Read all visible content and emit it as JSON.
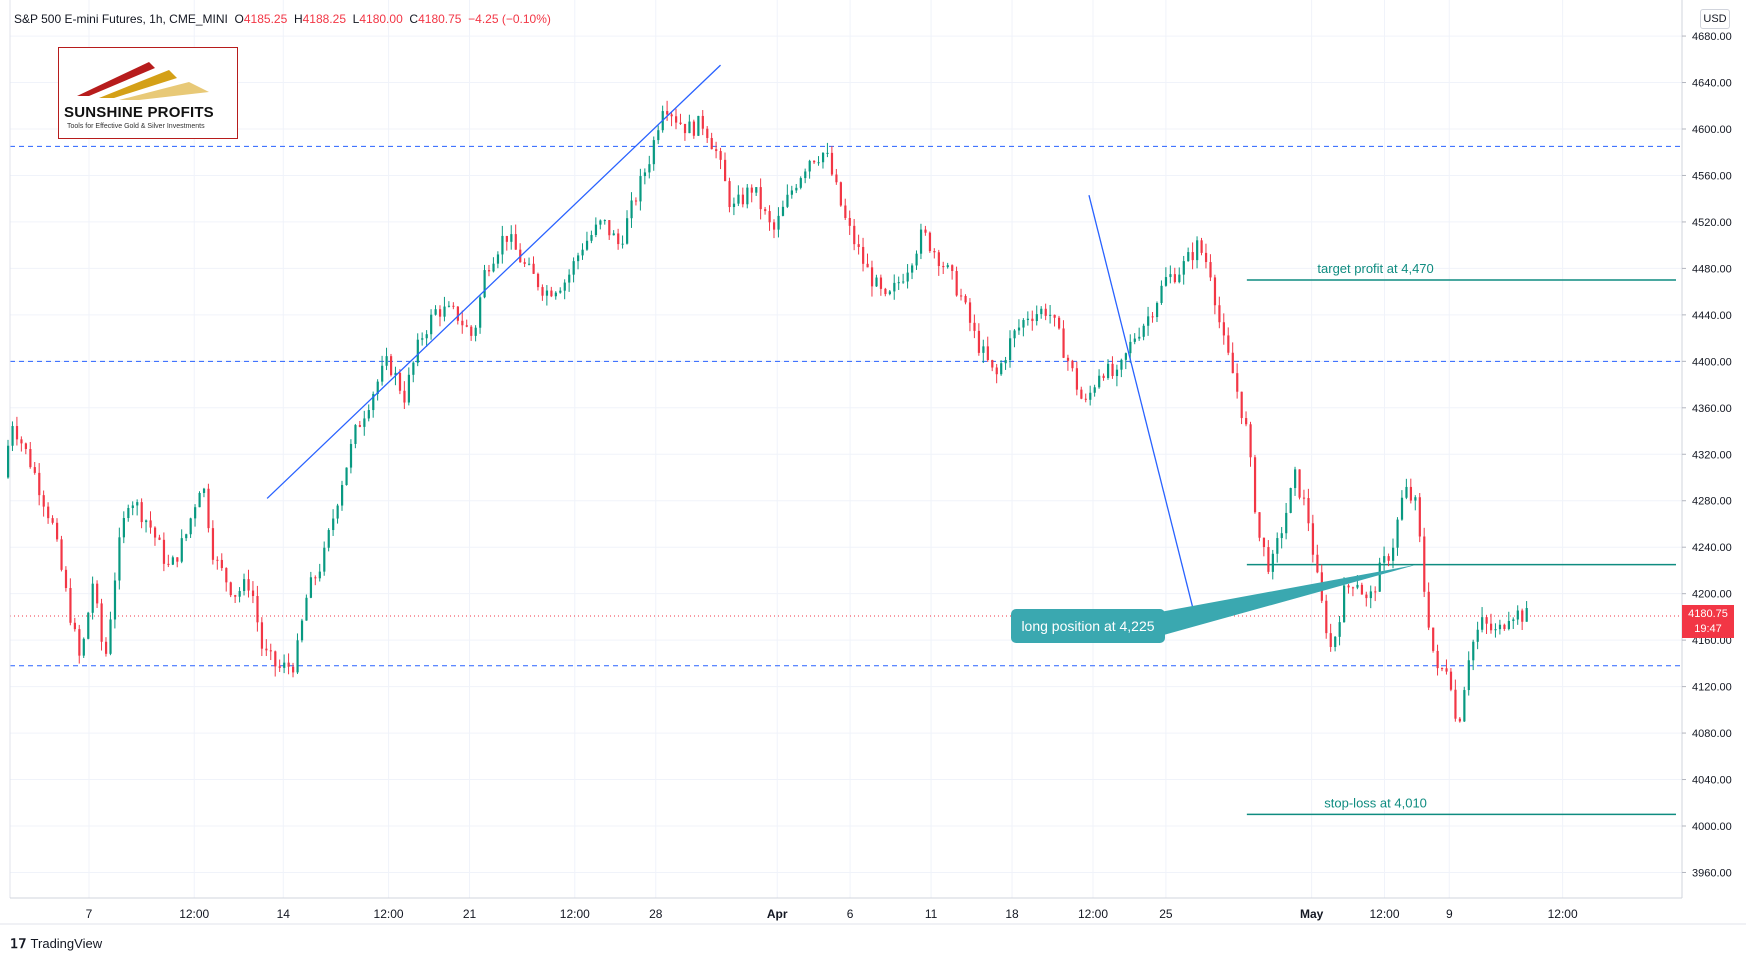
{
  "header": {
    "symbol": "S&P 500 E-mini Futures, 1h, CME_MINI",
    "open_label": "O",
    "open": "4185.25",
    "high_label": "H",
    "high": "4188.25",
    "low_label": "L",
    "low": "4180.00",
    "close_label": "C",
    "close": "4180.75",
    "change": "−4.25 (−0.10%)"
  },
  "currency": "USD",
  "logo": {
    "title": "SUNSHINE PROFITS",
    "subtitle": "Tools for Effective Gold & Silver Investments"
  },
  "price_badge": {
    "price": "4180.75",
    "countdown": "19:47"
  },
  "footer": {
    "brand": "TradingView"
  },
  "colors": {
    "up": "#089981",
    "down": "#f23645",
    "trendline": "#2962ff",
    "level_line": "#2962ff",
    "target_line": "#0f8c80",
    "callout": "#3aa8b0",
    "grid": "#f0f3fa"
  },
  "chart_data": {
    "type": "candlestick",
    "y_axis": {
      "ticks": [
        3960,
        4000,
        4040,
        4080,
        4120,
        4160,
        4200,
        4240,
        4280,
        4320,
        4360,
        4400,
        4440,
        4480,
        4520,
        4560,
        4600,
        4640,
        4680
      ],
      "tick_labels": [
        "3960.00",
        "4000.00",
        "4040.00",
        "4080.00",
        "4120.00",
        "4160.00",
        "4200.00",
        "4240.00",
        "4280.00",
        "4320.00",
        "4360.00",
        "4400.00",
        "4440.00",
        "4480.00",
        "4520.00",
        "4560.00",
        "4600.00",
        "4640.00",
        "4680.00"
      ],
      "ylim": [
        3920,
        4695
      ]
    },
    "x_axis": {
      "labels": [
        "7",
        "12:00",
        "14",
        "12:00",
        "21",
        "12:00",
        "28",
        "Apr",
        "6",
        "11",
        "18",
        "12:00",
        "25",
        "May",
        "12:00",
        "9",
        "12:00"
      ],
      "bold": [
        "Apr",
        "May"
      ],
      "position_index": [
        1,
        2.3,
        3.4,
        4.7,
        5.7,
        7.0,
        8.0,
        9.5,
        10.4,
        11.4,
        12.4,
        13.4,
        14.3,
        16.1,
        17.0,
        17.8,
        19.2
      ],
      "x_range": [
        0,
        20.6
      ]
    },
    "price_path": [
      [
        0.0,
        4300
      ],
      [
        0.1,
        4350
      ],
      [
        0.35,
        4310
      ],
      [
        0.6,
        4260
      ],
      [
        0.8,
        4190
      ],
      [
        0.95,
        4140
      ],
      [
        1.1,
        4210
      ],
      [
        1.25,
        4140
      ],
      [
        1.4,
        4230
      ],
      [
        1.55,
        4285
      ],
      [
        1.8,
        4260
      ],
      [
        2.05,
        4220
      ],
      [
        2.25,
        4250
      ],
      [
        2.45,
        4300
      ],
      [
        2.6,
        4230
      ],
      [
        2.85,
        4200
      ],
      [
        3.05,
        4210
      ],
      [
        3.2,
        4150
      ],
      [
        3.4,
        4135
      ],
      [
        3.6,
        4140
      ],
      [
        3.75,
        4200
      ],
      [
        3.95,
        4230
      ],
      [
        4.15,
        4290
      ],
      [
        4.35,
        4340
      ],
      [
        4.6,
        4380
      ],
      [
        4.75,
        4400
      ],
      [
        4.95,
        4370
      ],
      [
        5.15,
        4420
      ],
      [
        5.35,
        4445
      ],
      [
        5.6,
        4440
      ],
      [
        5.8,
        4420
      ],
      [
        5.95,
        4480
      ],
      [
        6.2,
        4510
      ],
      [
        6.45,
        4480
      ],
      [
        6.7,
        4460
      ],
      [
        6.95,
        4470
      ],
      [
        7.15,
        4500
      ],
      [
        7.4,
        4520
      ],
      [
        7.6,
        4500
      ],
      [
        7.8,
        4540
      ],
      [
        8.0,
        4580
      ],
      [
        8.15,
        4625
      ],
      [
        8.3,
        4610
      ],
      [
        8.45,
        4600
      ],
      [
        8.65,
        4605
      ],
      [
        8.8,
        4580
      ],
      [
        9.0,
        4530
      ],
      [
        9.25,
        4550
      ],
      [
        9.5,
        4510
      ],
      [
        9.75,
        4550
      ],
      [
        9.95,
        4575
      ],
      [
        10.15,
        4580
      ],
      [
        10.4,
        4520
      ],
      [
        10.65,
        4480
      ],
      [
        10.9,
        4450
      ],
      [
        11.15,
        4480
      ],
      [
        11.35,
        4510
      ],
      [
        11.55,
        4490
      ],
      [
        11.8,
        4460
      ],
      [
        12.0,
        4420
      ],
      [
        12.25,
        4385
      ],
      [
        12.45,
        4420
      ],
      [
        12.65,
        4440
      ],
      [
        12.9,
        4445
      ],
      [
        13.15,
        4400
      ],
      [
        13.35,
        4360
      ],
      [
        13.55,
        4395
      ],
      [
        13.75,
        4385
      ],
      [
        13.95,
        4420
      ],
      [
        14.15,
        4440
      ],
      [
        14.35,
        4470
      ],
      [
        14.55,
        4480
      ],
      [
        14.75,
        4500
      ],
      [
        14.9,
        4480
      ],
      [
        15.05,
        4420
      ],
      [
        15.2,
        4385
      ],
      [
        15.35,
        4340
      ],
      [
        15.5,
        4250
      ],
      [
        15.65,
        4220
      ],
      [
        15.8,
        4260
      ],
      [
        15.95,
        4300
      ],
      [
        16.1,
        4270
      ],
      [
        16.25,
        4200
      ],
      [
        16.4,
        4150
      ],
      [
        16.55,
        4200
      ],
      [
        16.7,
        4215
      ],
      [
        16.85,
        4190
      ],
      [
        17.0,
        4220
      ],
      [
        17.15,
        4240
      ],
      [
        17.3,
        4290
      ],
      [
        17.45,
        4275
      ],
      [
        17.55,
        4200
      ],
      [
        17.7,
        4130
      ],
      [
        17.85,
        4140
      ],
      [
        17.95,
        4080
      ],
      [
        18.1,
        4150
      ],
      [
        18.25,
        4175
      ],
      [
        18.45,
        4165
      ],
      [
        18.6,
        4185
      ],
      [
        18.8,
        4180.75
      ]
    ],
    "levels": {
      "horizontal_dashed": [
        4585,
        4400,
        4138
      ],
      "current_price": 4180.75,
      "target_profit": {
        "value": 4470,
        "label": "target profit at 4,470"
      },
      "long_position": {
        "value": 4225,
        "label": "long position at 4,225"
      },
      "stop_loss": {
        "value": 4010,
        "label": "stop-loss at 4,010"
      }
    },
    "trendlines": [
      {
        "from": [
          3.2,
          4282
        ],
        "to": [
          8.8,
          4655
        ]
      },
      {
        "from": [
          13.35,
          4543
        ],
        "to": [
          14.65,
          4183
        ]
      }
    ],
    "annotations": [
      {
        "text": "target profit at 4,470"
      },
      {
        "text": "stop-loss at 4,010"
      },
      {
        "text": "long position at 4,225"
      }
    ]
  }
}
